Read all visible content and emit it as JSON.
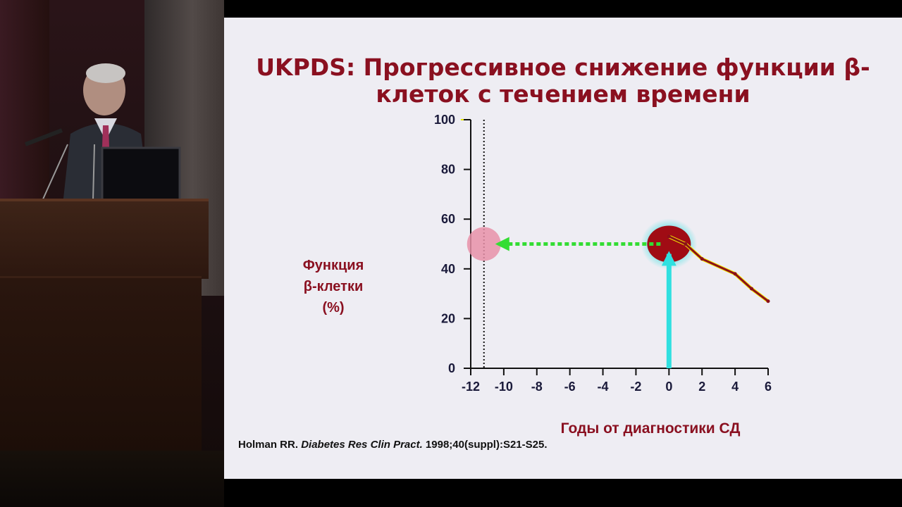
{
  "slide": {
    "title_line1": "UKPDS: Прогрессивное снижение функции β-",
    "title_line2": "клеток с течением времени",
    "ylabel_line1": "Функция",
    "ylabel_line2": "β-клетки",
    "ylabel_line3": "(%)",
    "xlabel": "Годы от диагностики СД",
    "citation_author": "Holman RR. ",
    "citation_journal": "Diabetes Res Clin Pract.",
    "citation_rest": " 1998;40(suppl):S21-S25."
  },
  "colors": {
    "title": "#8a1020",
    "series_line": "#8b0f1a",
    "series_highlight": "#f5e600",
    "projection_arrow": "#33dd33",
    "cyan_arrow": "#30e0e0",
    "diagnosis_circle": "#a00c14",
    "onset_circle": "#e890a8"
  },
  "chart_data": {
    "type": "line",
    "xlabel": "Годы от диагностики СД",
    "ylabel": "Функция β-клетки (%)",
    "xlim": [
      -12,
      6
    ],
    "ylim": [
      0,
      100
    ],
    "x_ticks": [
      -12,
      -10,
      -8,
      -6,
      -4,
      -2,
      0,
      2,
      4,
      6
    ],
    "y_ticks": [
      0,
      20,
      40,
      60,
      80,
      100
    ],
    "series": [
      {
        "x": [
          0,
          1,
          2,
          4,
          5,
          6
        ],
        "y": [
          53,
          50,
          44,
          38,
          32,
          27
        ]
      }
    ],
    "annotations": {
      "vertical_dotted_line_x": -11.2,
      "diagnosis_point": {
        "x": 0,
        "y": 50
      },
      "extrapolated_onset": {
        "x": -11.2,
        "y": 50
      },
      "horizontal_arrow": {
        "from_x": 0,
        "to_x": -11.2,
        "y": 50
      },
      "vertical_arrow": {
        "x": 0,
        "from_y": 0,
        "to_y": 46
      }
    }
  }
}
